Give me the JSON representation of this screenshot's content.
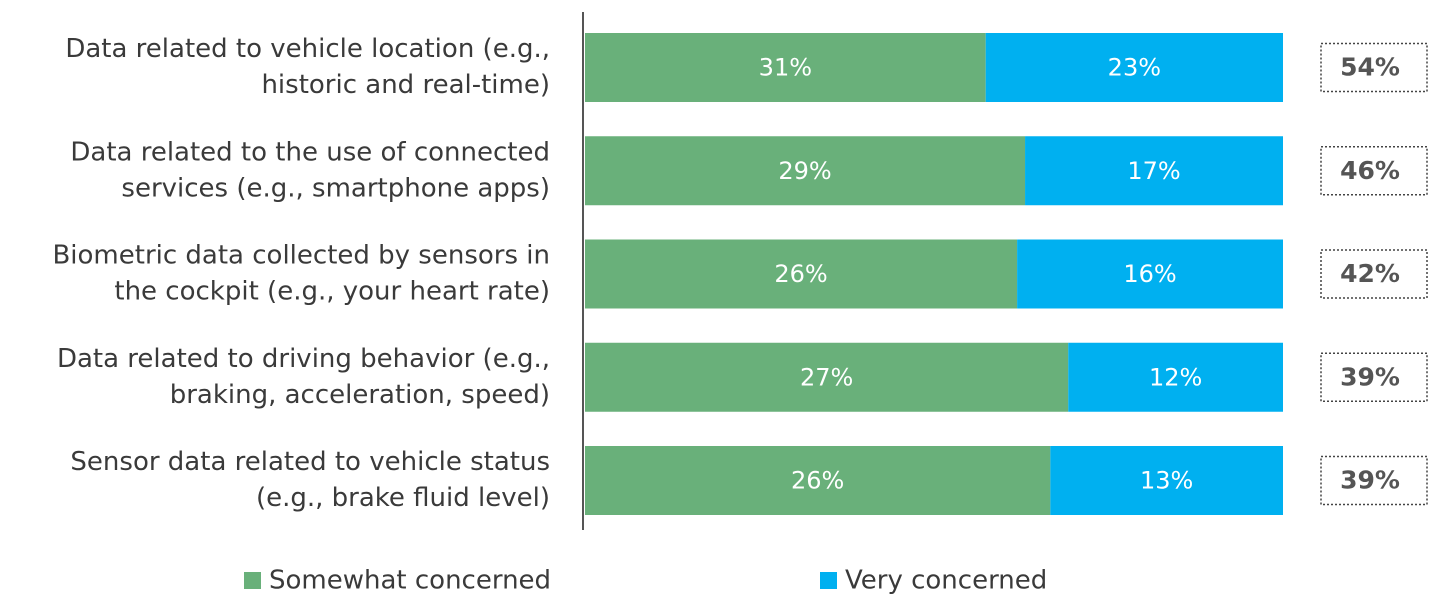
{
  "chart_data": {
    "type": "bar",
    "orientation": "horizontal",
    "stacking": "normalized",
    "categories": [
      [
        "Data related to vehicle location (e.g.,",
        "historic and real-time)"
      ],
      [
        "Data related to the use of connected",
        "services (e.g., smartphone apps)"
      ],
      [
        "Biometric data collected by sensors in",
        "the cockpit (e.g., your heart rate)"
      ],
      [
        "Data related to driving behavior (e.g.,",
        "braking, acceleration, speed)"
      ],
      [
        "Sensor data related to vehicle status",
        "(e.g., brake fluid level)"
      ]
    ],
    "series": [
      {
        "name": "Somewhat concerned",
        "color": "#69b07a",
        "values": [
          31,
          29,
          26,
          27,
          26
        ],
        "value_labels": [
          "31%",
          "29%",
          "26%",
          "27%",
          "26%"
        ]
      },
      {
        "name": "Very concerned",
        "color": "#00b0f0",
        "values": [
          23,
          17,
          16,
          12,
          13
        ],
        "value_labels": [
          "23%",
          "17%",
          "16%",
          "12%",
          "13%"
        ]
      }
    ],
    "totals": [
      54,
      46,
      42,
      39,
      39
    ],
    "total_labels": [
      "54%",
      "46%",
      "42%",
      "39%",
      "39%"
    ],
    "legend": "bottom"
  }
}
